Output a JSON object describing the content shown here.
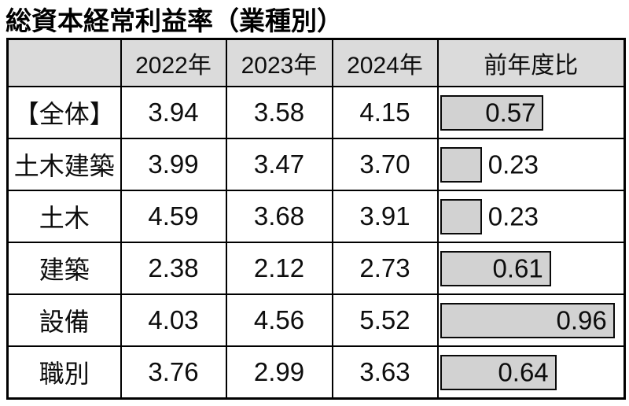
{
  "title": "総資本経常利益率（業種別）",
  "table": {
    "header": {
      "col0": "",
      "col1": "2022年",
      "col2": "2023年",
      "col3": "2024年",
      "col4": "前年度比"
    },
    "rows": [
      {
        "label": "【全体】",
        "y2022": "3.94",
        "y2023": "3.58",
        "y2024": "4.15",
        "yoy": "0.57",
        "yoy_value": 0.57,
        "label_inside": true
      },
      {
        "label": "土木建築",
        "y2022": "3.99",
        "y2023": "3.47",
        "y2024": "3.70",
        "yoy": "0.23",
        "yoy_value": 0.23,
        "label_inside": false
      },
      {
        "label": "土木",
        "y2022": "4.59",
        "y2023": "3.68",
        "y2024": "3.91",
        "yoy": "0.23",
        "yoy_value": 0.23,
        "label_inside": false
      },
      {
        "label": "建築",
        "y2022": "2.38",
        "y2023": "2.12",
        "y2024": "2.73",
        "yoy": "0.61",
        "yoy_value": 0.61,
        "label_inside": true
      },
      {
        "label": "設備",
        "y2022": "4.03",
        "y2023": "4.56",
        "y2024": "5.52",
        "yoy": "0.96",
        "yoy_value": 0.96,
        "label_inside": true
      },
      {
        "label": "職別",
        "y2022": "3.76",
        "y2023": "2.99",
        "y2024": "3.63",
        "yoy": "0.64",
        "yoy_value": 0.64,
        "label_inside": true
      }
    ]
  },
  "colors": {
    "header_bg": "#dbdbdb",
    "bar_fill": "#d2d2d2",
    "border": "#000000"
  },
  "chart_data": {
    "type": "table",
    "title": "総資本経常利益率（業種別）",
    "columns": [
      "2022年",
      "2023年",
      "2024年",
      "前年度比"
    ],
    "categories": [
      "【全体】",
      "土木建築",
      "土木",
      "建築",
      "設備",
      "職別"
    ],
    "series": [
      {
        "name": "2022年",
        "values": [
          3.94,
          3.99,
          4.59,
          2.38,
          4.03,
          3.76
        ]
      },
      {
        "name": "2023年",
        "values": [
          3.58,
          3.47,
          3.68,
          2.12,
          4.56,
          2.99
        ]
      },
      {
        "name": "2024年",
        "values": [
          4.15,
          3.7,
          3.91,
          2.73,
          5.52,
          3.63
        ]
      },
      {
        "name": "前年度比",
        "values": [
          0.57,
          0.23,
          0.23,
          0.61,
          0.96,
          0.64
        ]
      }
    ],
    "bar_column": {
      "name": "前年度比",
      "axis_max": 1.0,
      "style": "horizontal-bar-in-cell"
    }
  }
}
